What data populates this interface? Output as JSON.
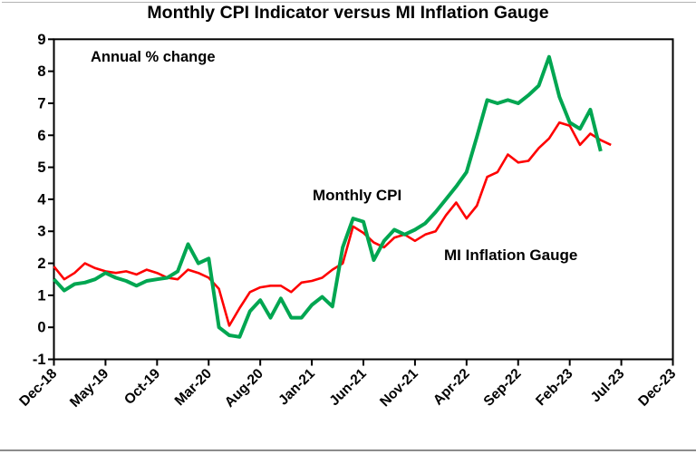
{
  "page": {
    "rules": {
      "top_color": "#b3b3b3",
      "bottom_color": "#8c8c8c"
    }
  },
  "chart_data": {
    "type": "line",
    "title": "Monthly CPI Indicator versus MI Inflation Gauge",
    "annotation": "Annual % change",
    "xlabel": "",
    "ylabel": "",
    "ylim": [
      -1,
      9
    ],
    "yticks": [
      -1,
      0,
      1,
      2,
      3,
      4,
      5,
      6,
      7,
      8,
      9
    ],
    "grid": false,
    "legend_position": "inline-text-labels",
    "axis_color": "#000000",
    "xtick_labels": [
      "Dec-18",
      "May-19",
      "Oct-19",
      "Mar-20",
      "Aug-20",
      "Jan-21",
      "Jun-21",
      "Nov-21",
      "Apr-22",
      "Sep-22",
      "Feb-23",
      "Jul-23",
      "Dec-23"
    ],
    "months_per_xtick": 5,
    "months": [
      "Dec-18",
      "Jan-19",
      "Feb-19",
      "Mar-19",
      "Apr-19",
      "May-19",
      "Jun-19",
      "Jul-19",
      "Aug-19",
      "Sep-19",
      "Oct-19",
      "Nov-19",
      "Dec-19",
      "Jan-20",
      "Feb-20",
      "Mar-20",
      "Apr-20",
      "May-20",
      "Jun-20",
      "Jul-20",
      "Aug-20",
      "Sep-20",
      "Oct-20",
      "Nov-20",
      "Dec-20",
      "Jan-21",
      "Feb-21",
      "Mar-21",
      "Apr-21",
      "May-21",
      "Jun-21",
      "Jul-21",
      "Aug-21",
      "Sep-21",
      "Oct-21",
      "Nov-21",
      "Dec-21",
      "Jan-22",
      "Feb-22",
      "Mar-22",
      "Apr-22",
      "May-22",
      "Jun-22",
      "Jul-22",
      "Aug-22",
      "Sep-22",
      "Oct-22",
      "Nov-22",
      "Dec-22",
      "Jan-23",
      "Feb-23",
      "Mar-23",
      "Apr-23",
      "May-23",
      "Jun-23"
    ],
    "series": [
      {
        "name": "MI Inflation Gauge",
        "color": "#FE0000",
        "line_width": 2.6,
        "values": [
          1.9,
          1.5,
          1.7,
          2.0,
          1.85,
          1.75,
          1.7,
          1.75,
          1.65,
          1.8,
          1.7,
          1.55,
          1.5,
          1.8,
          1.7,
          1.55,
          1.2,
          0.05,
          0.6,
          1.1,
          1.25,
          1.3,
          1.3,
          1.1,
          1.4,
          1.45,
          1.55,
          1.8,
          2.0,
          3.15,
          2.95,
          2.65,
          2.5,
          2.8,
          2.9,
          2.7,
          2.9,
          3.0,
          3.5,
          3.9,
          3.4,
          3.8,
          4.7,
          4.85,
          5.4,
          5.15,
          5.2,
          5.6,
          5.9,
          6.4,
          6.3,
          5.7,
          6.05,
          5.85,
          5.7
        ]
      },
      {
        "name": "Monthly CPI",
        "color": "#00A651",
        "line_width": 4,
        "values": [
          1.5,
          1.15,
          1.35,
          1.4,
          1.5,
          1.7,
          1.55,
          1.45,
          1.3,
          1.45,
          1.5,
          1.55,
          1.75,
          2.6,
          2.0,
          2.15,
          0.0,
          -0.25,
          -0.3,
          0.5,
          0.85,
          0.3,
          0.9,
          0.3,
          0.3,
          0.7,
          0.95,
          0.65,
          2.5,
          3.4,
          3.3,
          2.1,
          2.7,
          3.05,
          2.9,
          3.05,
          3.25,
          3.6,
          4.0,
          4.4,
          4.85,
          5.95,
          7.1,
          7.0,
          7.1,
          7.0,
          7.25,
          7.55,
          8.45,
          7.2,
          6.4,
          6.2,
          6.8,
          5.5
        ]
      }
    ]
  }
}
